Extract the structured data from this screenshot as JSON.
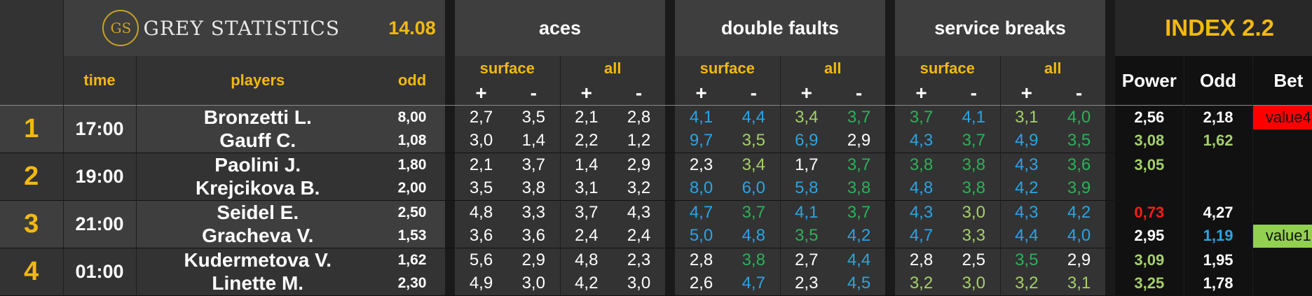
{
  "header": {
    "logo_initials": "GS",
    "logo_text": "GREY STATISTICS",
    "date": "14.08",
    "index_title": "INDEX 2.2"
  },
  "groups": {
    "aces": "aces",
    "double_faults": "double faults",
    "service_breaks": "service breaks"
  },
  "sub_headers": {
    "surface": "surface",
    "all": "all",
    "plus": "+",
    "minus": "-"
  },
  "col_headers": {
    "time": "time",
    "players": "players",
    "odd": "odd",
    "power": "Power",
    "odd_index": "Odd",
    "bet": "Bet"
  },
  "colors": {
    "yellow": "#f2b90f",
    "blue": "#2aa4e3",
    "green": "#2bb15a",
    "light_green": "#a6cf6a",
    "red": "#ff1a1a",
    "white": "#ffffff",
    "bet_red": "#ff0000",
    "bet_green": "#92d050"
  },
  "matches": [
    {
      "num": "1",
      "time": "17:00",
      "players": [
        {
          "name": "Bronzetti L.",
          "odd": "8,00",
          "aces": [
            "2,7",
            "3,5",
            "2,1",
            "2,8"
          ],
          "df": [
            [
              "4,1",
              "blue"
            ],
            [
              "4,4",
              "blue"
            ],
            [
              "3,4",
              "light_green"
            ],
            [
              "3,7",
              "green"
            ]
          ],
          "sb": [
            [
              "3,7",
              "green"
            ],
            [
              "4,1",
              "blue"
            ],
            [
              "3,1",
              "light_green"
            ],
            [
              "4,0",
              "green"
            ]
          ],
          "power": [
            "2,56",
            "white"
          ],
          "odd_index": [
            "2,18",
            "white"
          ],
          "bet": [
            "value4",
            "red"
          ]
        },
        {
          "name": "Gauff C.",
          "odd": "1,08",
          "aces": [
            "3,0",
            "1,4",
            "2,2",
            "1,2"
          ],
          "df": [
            [
              "9,7",
              "blue"
            ],
            [
              "3,5",
              "light_green"
            ],
            [
              "6,9",
              "blue"
            ],
            [
              "2,9",
              "white"
            ]
          ],
          "sb": [
            [
              "4,3",
              "blue"
            ],
            [
              "3,7",
              "green"
            ],
            [
              "4,9",
              "blue"
            ],
            [
              "3,5",
              "green"
            ]
          ],
          "power": [
            "3,08",
            "light_green"
          ],
          "odd_index": [
            "1,62",
            "light_green"
          ],
          "bet": [
            "",
            ""
          ]
        }
      ]
    },
    {
      "num": "2",
      "time": "19:00",
      "players": [
        {
          "name": "Paolini J.",
          "odd": "1,80",
          "aces": [
            "2,1",
            "3,7",
            "1,4",
            "2,9"
          ],
          "df": [
            [
              "2,3",
              "white"
            ],
            [
              "3,4",
              "light_green"
            ],
            [
              "1,7",
              "white"
            ],
            [
              "3,7",
              "green"
            ]
          ],
          "sb": [
            [
              "3,8",
              "green"
            ],
            [
              "3,8",
              "green"
            ],
            [
              "4,3",
              "blue"
            ],
            [
              "3,6",
              "green"
            ]
          ],
          "power": [
            "3,05",
            "light_green"
          ],
          "odd_index": [
            "",
            "white"
          ],
          "bet": [
            "",
            ""
          ]
        },
        {
          "name": "Krejcikova B.",
          "odd": "2,00",
          "aces": [
            "3,5",
            "3,8",
            "3,1",
            "3,2"
          ],
          "df": [
            [
              "8,0",
              "blue"
            ],
            [
              "6,0",
              "blue"
            ],
            [
              "5,8",
              "blue"
            ],
            [
              "3,8",
              "green"
            ]
          ],
          "sb": [
            [
              "4,8",
              "blue"
            ],
            [
              "3,8",
              "green"
            ],
            [
              "4,2",
              "blue"
            ],
            [
              "3,9",
              "green"
            ]
          ],
          "power": [
            "",
            "white"
          ],
          "odd_index": [
            "",
            "white"
          ],
          "bet": [
            "",
            ""
          ]
        }
      ]
    },
    {
      "num": "3",
      "time": "21:00",
      "players": [
        {
          "name": "Seidel E.",
          "odd": "2,50",
          "aces": [
            "4,8",
            "3,3",
            "3,7",
            "4,3"
          ],
          "df": [
            [
              "4,7",
              "blue"
            ],
            [
              "3,7",
              "green"
            ],
            [
              "4,1",
              "blue"
            ],
            [
              "3,7",
              "green"
            ]
          ],
          "sb": [
            [
              "4,3",
              "blue"
            ],
            [
              "3,0",
              "light_green"
            ],
            [
              "4,3",
              "blue"
            ],
            [
              "4,2",
              "blue"
            ]
          ],
          "power": [
            "0,73",
            "red"
          ],
          "odd_index": [
            "4,27",
            "white"
          ],
          "bet": [
            "",
            ""
          ]
        },
        {
          "name": "Gracheva V.",
          "odd": "1,53",
          "aces": [
            "3,6",
            "3,6",
            "2,4",
            "2,4"
          ],
          "df": [
            [
              "5,0",
              "blue"
            ],
            [
              "4,8",
              "blue"
            ],
            [
              "3,5",
              "green"
            ],
            [
              "4,2",
              "blue"
            ]
          ],
          "sb": [
            [
              "4,7",
              "blue"
            ],
            [
              "3,3",
              "light_green"
            ],
            [
              "4,4",
              "blue"
            ],
            [
              "4,0",
              "blue"
            ]
          ],
          "power": [
            "2,95",
            "white"
          ],
          "odd_index": [
            "1,19",
            "blue"
          ],
          "bet": [
            "value1",
            "green"
          ]
        }
      ]
    },
    {
      "num": "4",
      "time": "01:00",
      "players": [
        {
          "name": "Kudermetova V.",
          "odd": "1,62",
          "aces": [
            "5,6",
            "2,9",
            "4,8",
            "2,3"
          ],
          "df": [
            [
              "2,8",
              "white"
            ],
            [
              "3,8",
              "green"
            ],
            [
              "2,7",
              "white"
            ],
            [
              "4,4",
              "blue"
            ]
          ],
          "sb": [
            [
              "2,8",
              "white"
            ],
            [
              "2,5",
              "white"
            ],
            [
              "3,5",
              "green"
            ],
            [
              "2,9",
              "white"
            ]
          ],
          "power": [
            "3,09",
            "light_green"
          ],
          "odd_index": [
            "1,95",
            "white"
          ],
          "bet": [
            "",
            ""
          ]
        },
        {
          "name": "Linette M.",
          "odd": "2,30",
          "aces": [
            "4,9",
            "3,0",
            "4,2",
            "3,0"
          ],
          "df": [
            [
              "2,6",
              "white"
            ],
            [
              "4,7",
              "blue"
            ],
            [
              "2,3",
              "white"
            ],
            [
              "4,5",
              "blue"
            ]
          ],
          "sb": [
            [
              "3,2",
              "light_green"
            ],
            [
              "3,0",
              "light_green"
            ],
            [
              "3,2",
              "light_green"
            ],
            [
              "3,1",
              "light_green"
            ]
          ],
          "power": [
            "3,25",
            "light_green"
          ],
          "odd_index": [
            "1,78",
            "white"
          ],
          "bet": [
            "",
            ""
          ]
        }
      ]
    }
  ]
}
